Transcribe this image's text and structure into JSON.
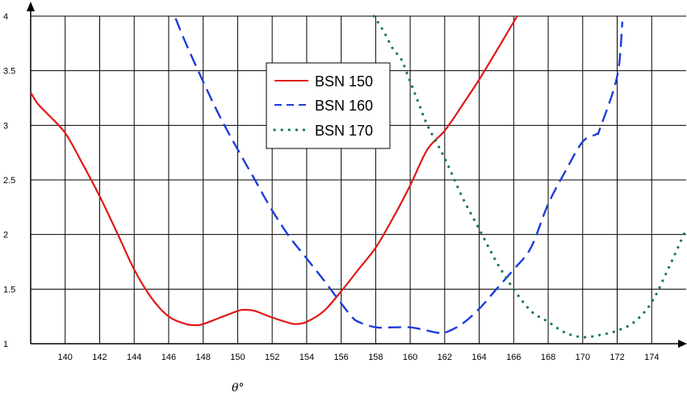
{
  "chart_data": {
    "type": "line",
    "title": "",
    "xlabel": "θ°",
    "ylabel": "",
    "xlim": [
      138,
      176
    ],
    "ylim": [
      1,
      4
    ],
    "x_ticks": [
      140,
      142,
      144,
      146,
      148,
      150,
      152,
      154,
      156,
      158,
      160,
      162,
      164,
      166,
      168,
      170,
      172,
      174
    ],
    "y_ticks": [
      1,
      1.5,
      2,
      2.5,
      3,
      3.5,
      4
    ],
    "y_tick_labels": [
      "1",
      "1.5",
      "2",
      "2.5",
      "3",
      "3.5",
      "4"
    ],
    "grid": true,
    "legend_position": "top-center",
    "series": [
      {
        "name": "BSN 150",
        "color": "#e01818",
        "style": "solid",
        "x": [
          138,
          138.4,
          139,
          140,
          141,
          142,
          143,
          144,
          145,
          146,
          147,
          147.6,
          148,
          149,
          150,
          150.4,
          151,
          152,
          153,
          153.4,
          154,
          155,
          156,
          157,
          158,
          159,
          160,
          161,
          162,
          163,
          164,
          165,
          166.2
        ],
        "y": [
          3.3,
          3.2,
          3.1,
          2.93,
          2.65,
          2.35,
          2.02,
          1.68,
          1.42,
          1.25,
          1.18,
          1.17,
          1.18,
          1.24,
          1.3,
          1.31,
          1.3,
          1.24,
          1.19,
          1.18,
          1.2,
          1.3,
          1.48,
          1.68,
          1.88,
          2.15,
          2.45,
          2.78,
          2.95,
          3.18,
          3.42,
          3.68,
          4.0
        ]
      },
      {
        "name": "BSN 160",
        "color": "#1c3cd8",
        "style": "dashed",
        "x": [
          146.4,
          147,
          148,
          149,
          150,
          151,
          152,
          153,
          154,
          155,
          156,
          156.6,
          157,
          158,
          159,
          160,
          161,
          161.6,
          162,
          163,
          164,
          165,
          166,
          167,
          168,
          169,
          170,
          170.8,
          171,
          172,
          172.3
        ],
        "y": [
          3.98,
          3.75,
          3.4,
          3.07,
          2.78,
          2.5,
          2.22,
          1.98,
          1.78,
          1.58,
          1.37,
          1.25,
          1.2,
          1.15,
          1.15,
          1.15,
          1.12,
          1.1,
          1.1,
          1.18,
          1.32,
          1.5,
          1.68,
          1.88,
          2.28,
          2.58,
          2.85,
          2.92,
          2.97,
          3.45,
          3.95
        ]
      },
      {
        "name": "BSN 170",
        "color": "#1a7a4a",
        "style": "dotted",
        "x": [
          157.9,
          158.5,
          159,
          159.5,
          160,
          160.5,
          161,
          162,
          163,
          164,
          165,
          166,
          167,
          168,
          169,
          170,
          171,
          172,
          173,
          174,
          175,
          176
        ],
        "y": [
          4.0,
          3.85,
          3.7,
          3.6,
          3.4,
          3.2,
          3.0,
          2.7,
          2.35,
          2.05,
          1.75,
          1.5,
          1.3,
          1.2,
          1.1,
          1.06,
          1.08,
          1.12,
          1.2,
          1.38,
          1.7,
          2.05
        ]
      }
    ]
  }
}
